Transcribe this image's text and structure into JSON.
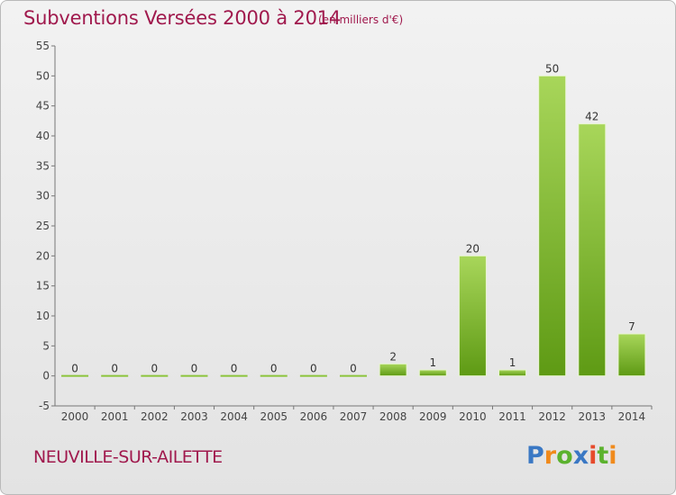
{
  "header": {
    "title": "Subventions Versées 2000 à 2014",
    "subtitle": "(en milliers d'€)"
  },
  "footer": {
    "commune": "NEUVILLE-SUR-AILETTE",
    "logo_text": "Proxiti"
  },
  "colors": {
    "title": "#a0194d",
    "bar_light": "#a8d65a",
    "bar_dark": "#5e9a14",
    "background": "#ebebeb"
  },
  "chart_data": {
    "type": "bar",
    "title": "Subventions Versées 2000 à 2014",
    "subtitle": "(en milliers d'€)",
    "categories": [
      "2000",
      "2001",
      "2002",
      "2003",
      "2004",
      "2005",
      "2006",
      "2007",
      "2008",
      "2009",
      "2010",
      "2011",
      "2012",
      "2013",
      "2014"
    ],
    "values": [
      0,
      0,
      0,
      0,
      0,
      0,
      0,
      0,
      2,
      1,
      20,
      1,
      50,
      42,
      7
    ],
    "ylim": [
      -5,
      55
    ],
    "yticks": [
      -5,
      0,
      5,
      10,
      15,
      20,
      25,
      30,
      35,
      40,
      45,
      50,
      55
    ],
    "grid": false,
    "data_labels": true
  }
}
